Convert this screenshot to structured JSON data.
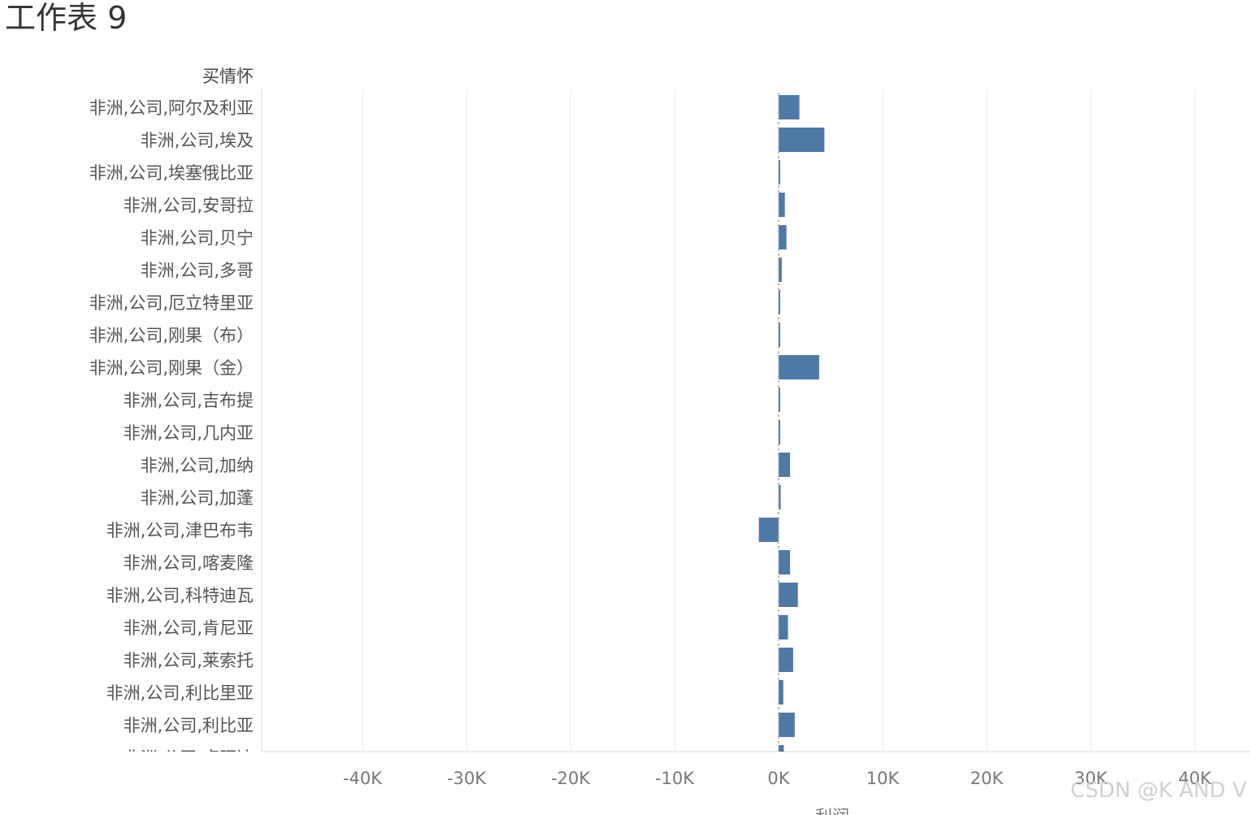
{
  "sheet_title": "工作表 9",
  "watermark": "CSDN @K AND V",
  "colors": {
    "bar": "#4e79a7",
    "grid": "#eeeeee",
    "zero_line": "#aaaaaa",
    "axis_line": "#e6e6e6"
  },
  "chart_data": {
    "type": "bar",
    "orientation": "horizontal",
    "row_header": "买情怀",
    "xlabel": "利润",
    "xlim": [
      -50000,
      45000
    ],
    "x_ticks": [
      -40000,
      -30000,
      -20000,
      -10000,
      0,
      10000,
      20000,
      30000,
      40000
    ],
    "x_tick_labels": [
      "-40K",
      "-30K",
      "-20K",
      "-10K",
      "0K",
      "10K",
      "20K",
      "30K",
      "40K"
    ],
    "grid": true,
    "categories": [
      "非洲,公司,阿尔及利亚",
      "非洲,公司,埃及",
      "非洲,公司,埃塞俄比亚",
      "非洲,公司,安哥拉",
      "非洲,公司,贝宁",
      "非洲,公司,多哥",
      "非洲,公司,厄立特里亚",
      "非洲,公司,刚果（布）",
      "非洲,公司,刚果（金）",
      "非洲,公司,吉布提",
      "非洲,公司,几内亚",
      "非洲,公司,加纳",
      "非洲,公司,加蓬",
      "非洲,公司,津巴布韦",
      "非洲,公司,喀麦隆",
      "非洲,公司,科特迪瓦",
      "非洲,公司,肯尼亚",
      "非洲,公司,莱索托",
      "非洲,公司,利比里亚",
      "非洲,公司,利比亚",
      "非洲,公司,卢旺达"
    ],
    "values": [
      2000,
      4400,
      150,
      600,
      750,
      300,
      100,
      150,
      3900,
      150,
      100,
      1100,
      200,
      -1900,
      1100,
      1850,
      900,
      1400,
      450,
      1550,
      500
    ]
  }
}
